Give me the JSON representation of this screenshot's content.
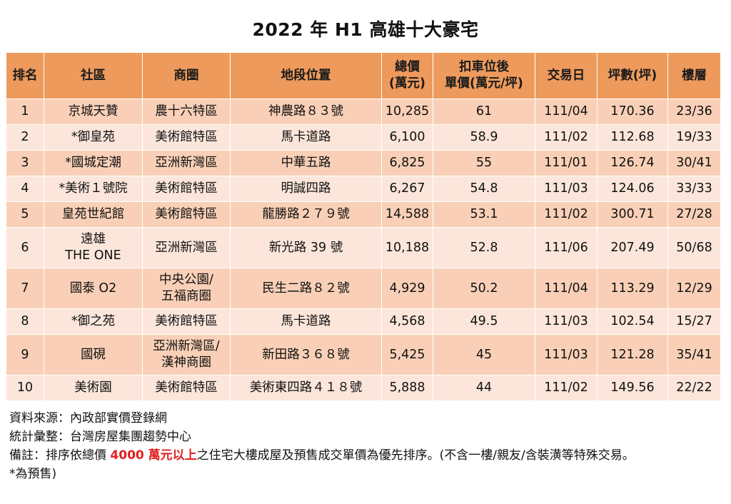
{
  "title": "2022 年 H1 高雄十大豪宅",
  "headers": {
    "rank": "排名",
    "community": "社區",
    "district": "商圈",
    "location": "地段位置",
    "total_price": [
      "總價",
      "(萬元)"
    ],
    "unit_price": [
      "扣車位後",
      "單價(萬元/坪)"
    ],
    "date": "交易日",
    "area": "坪數(坪)",
    "floor": "樓層"
  },
  "rows": [
    {
      "rank": "1",
      "community": [
        "京城天贊"
      ],
      "district": [
        "農十六特區"
      ],
      "location": "神農路８３號",
      "total_price": "10,285",
      "unit_price": "61",
      "date": "111/04",
      "area": "170.36",
      "floor": "23/36"
    },
    {
      "rank": "2",
      "community": [
        "*御皇苑"
      ],
      "district": [
        "美術館特區"
      ],
      "location": "馬卡道路",
      "total_price": "6,100",
      "unit_price": "58.9",
      "date": "111/02",
      "area": "112.68",
      "floor": "19/33"
    },
    {
      "rank": "3",
      "community": [
        "*國城定潮"
      ],
      "district": [
        "亞洲新灣區"
      ],
      "location": "中華五路",
      "total_price": "6,825",
      "unit_price": "55",
      "date": "111/01",
      "area": "126.74",
      "floor": "30/41"
    },
    {
      "rank": "4",
      "community": [
        "*美術１號院"
      ],
      "district": [
        "美術館特區"
      ],
      "location": "明誠四路",
      "total_price": "6,267",
      "unit_price": "54.8",
      "date": "111/03",
      "area": "124.06",
      "floor": "33/33"
    },
    {
      "rank": "5",
      "community": [
        "皇苑世紀館"
      ],
      "district": [
        "美術館特區"
      ],
      "location": "龍勝路２７９號",
      "total_price": "14,588",
      "unit_price": "53.1",
      "date": "111/02",
      "area": "300.71",
      "floor": "27/28"
    },
    {
      "rank": "6",
      "community": [
        "遠雄",
        "THE ONE"
      ],
      "district": [
        "亞洲新灣區"
      ],
      "location": "新光路 39 號",
      "total_price": "10,188",
      "unit_price": "52.8",
      "date": "111/06",
      "area": "207.49",
      "floor": "50/68"
    },
    {
      "rank": "7",
      "community": [
        "國泰 O2"
      ],
      "district": [
        "中央公園/",
        "五福商圈"
      ],
      "location": "民生二路８２號",
      "total_price": "4,929",
      "unit_price": "50.2",
      "date": "111/04",
      "area": "113.29",
      "floor": "12/29"
    },
    {
      "rank": "8",
      "community": [
        "*御之苑"
      ],
      "district": [
        "美術館特區"
      ],
      "location": "馬卡道路",
      "total_price": "4,568",
      "unit_price": "49.5",
      "date": "111/03",
      "area": "102.54",
      "floor": "15/27"
    },
    {
      "rank": "9",
      "community": [
        "國硯"
      ],
      "district": [
        "亞洲新灣區/",
        "漢神商圈"
      ],
      "location": "新田路３６８號",
      "total_price": "5,425",
      "unit_price": "45",
      "date": "111/03",
      "area": "121.28",
      "floor": "35/41"
    },
    {
      "rank": "10",
      "community": [
        "美術園"
      ],
      "district": [
        "美術館特區"
      ],
      "location": "美術東四路４１８號",
      "total_price": "5,888",
      "unit_price": "44",
      "date": "111/02",
      "area": "149.56",
      "floor": "22/22"
    }
  ],
  "notes": {
    "source": "資料來源：內政部實價登錄網",
    "compiled": "統計彙整：台灣房屋集團趨勢中心",
    "remark_prefix": "備註：排序依總價 ",
    "remark_highlight": "4000 萬元以上",
    "remark_suffix": "之住宅大樓成屋及預售成交單價為優先排序。(不含一樓/親友/含裝潢等特殊交易。",
    "presale": "*為預售)"
  },
  "colors": {
    "header_bg": "#ee9a5c",
    "row_odd": "#f9d0b7",
    "row_even": "#fce6db",
    "highlight": "#e02020"
  }
}
